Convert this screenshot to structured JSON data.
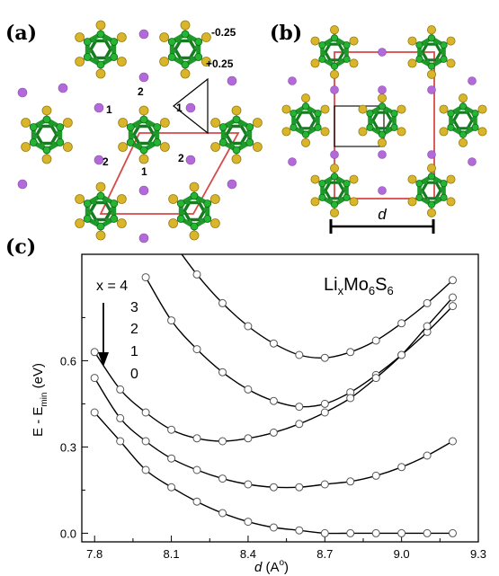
{
  "panels": {
    "a": {
      "label": "(a)",
      "annotations": [
        "-0.25",
        "+0.25"
      ],
      "site_labels": [
        "1",
        "2",
        "1",
        "2",
        "2",
        "1"
      ],
      "colors": {
        "cluster": "#1f9a2a",
        "sulfur": "#d8b52a",
        "lithium": "#b26ad9",
        "cell": "#d84a4a"
      }
    },
    "b": {
      "label": "(b)",
      "dimension_label": "d",
      "colors": {
        "cluster": "#1f9a2a",
        "sulfur": "#d8b52a",
        "lithium": "#b26ad9",
        "cell": "#d84a4a"
      }
    },
    "c": {
      "label": "(c)"
    }
  },
  "chart_data": {
    "type": "line",
    "title": "",
    "formula": {
      "base1": "Li",
      "sub1": "x",
      "base2": "Mo",
      "sub2": "6",
      "base3": "S",
      "sub3": "6"
    },
    "xlabel": {
      "italic": "d",
      "rest": " (A",
      "sup": "o",
      "close": ")"
    },
    "ylabel": {
      "main": "E - E",
      "sub": "min",
      "unit": " (eV)"
    },
    "xlim": [
      7.75,
      9.3
    ],
    "ylim": [
      -0.03,
      0.97
    ],
    "xticks": [
      "7.8",
      "8.1",
      "8.4",
      "8.7",
      "9.0",
      "9.3"
    ],
    "yticks": [
      "0.0",
      "0.3",
      "0.6"
    ],
    "legend_heading": "x = 4",
    "legend_items": [
      "3",
      "2",
      "1",
      "0"
    ],
    "grid": false,
    "series": [
      {
        "x": [
          8.1,
          8.2,
          8.3,
          8.4,
          8.5,
          8.6,
          8.7,
          8.8,
          8.9,
          9.0,
          9.1,
          9.2
        ],
        "y": [
          1.02,
          0.9,
          0.8,
          0.72,
          0.66,
          0.62,
          0.61,
          0.63,
          0.67,
          0.73,
          0.8,
          0.88
        ]
      },
      {
        "x": [
          8.0,
          8.1,
          8.2,
          8.3,
          8.4,
          8.5,
          8.6,
          8.7,
          8.8,
          8.9,
          9.0,
          9.1,
          9.2
        ],
        "y": [
          0.89,
          0.74,
          0.64,
          0.56,
          0.5,
          0.46,
          0.44,
          0.45,
          0.49,
          0.55,
          0.62,
          0.7,
          0.79
        ]
      },
      {
        "x": [
          7.8,
          7.9,
          8.0,
          8.1,
          8.2,
          8.3,
          8.4,
          8.5,
          8.6,
          8.7,
          8.8,
          8.9,
          9.0,
          9.1,
          9.2
        ],
        "y": [
          0.63,
          0.5,
          0.42,
          0.36,
          0.33,
          0.32,
          0.33,
          0.35,
          0.38,
          0.42,
          0.47,
          0.54,
          0.62,
          0.72,
          0.82
        ]
      },
      {
        "x": [
          7.8,
          7.9,
          8.0,
          8.1,
          8.2,
          8.3,
          8.4,
          8.5,
          8.6,
          8.7,
          8.8,
          8.9,
          9.0,
          9.1,
          9.2
        ],
        "y": [
          0.54,
          0.4,
          0.32,
          0.26,
          0.22,
          0.19,
          0.17,
          0.16,
          0.16,
          0.17,
          0.18,
          0.2,
          0.23,
          0.27,
          0.32
        ]
      },
      {
        "x": [
          7.8,
          7.9,
          8.0,
          8.1,
          8.2,
          8.3,
          8.4,
          8.5,
          8.6,
          8.7,
          8.8,
          8.9,
          9.0,
          9.1,
          9.2
        ],
        "y": [
          0.42,
          0.32,
          0.22,
          0.16,
          0.11,
          0.07,
          0.04,
          0.02,
          0.01,
          0.0,
          0.0,
          0.0,
          0.0,
          0.0,
          0.0
        ]
      }
    ]
  }
}
